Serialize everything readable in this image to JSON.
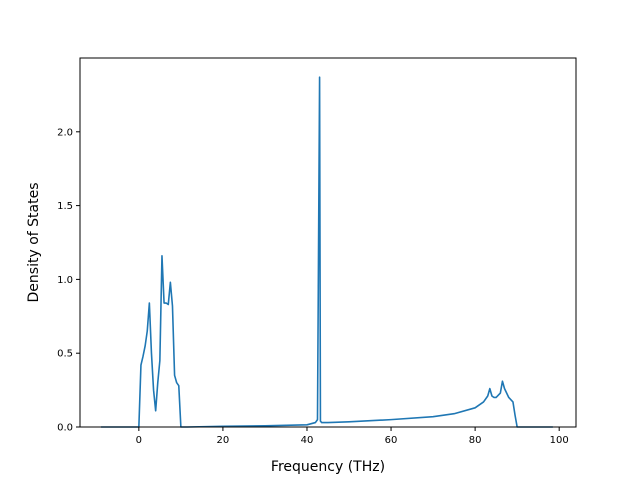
{
  "chart_data": {
    "type": "line",
    "title": "",
    "xlabel": "Frequency (THz)",
    "ylabel": "Density of States",
    "xlim": [
      -14,
      104
    ],
    "ylim": [
      0,
      2.5
    ],
    "xticks": [
      0,
      20,
      40,
      60,
      80,
      100
    ],
    "xtick_labels": [
      "0",
      "20",
      "40",
      "60",
      "80",
      "100"
    ],
    "yticks": [
      0.0,
      0.5,
      1.0,
      1.5,
      2.0
    ],
    "ytick_labels": [
      "0.0",
      "0.5",
      "1.0",
      "1.5",
      "2.0"
    ],
    "grid": false,
    "legend": "none",
    "color": "#1f77b4",
    "series": [
      {
        "x": [
          -9.0,
          -2.0,
          -0.2,
          0.0,
          0.5,
          1.0,
          1.5,
          2.0,
          2.5,
          3.0,
          3.5,
          4.0,
          4.5,
          5.0,
          5.5,
          6.0,
          6.5,
          7.0,
          7.5,
          8.0,
          8.5,
          9.0,
          9.5,
          10.0,
          10.5,
          11.0,
          11.5,
          20.0,
          30.0,
          40.0,
          42.0,
          42.5,
          43.0,
          43.2,
          43.5,
          44.0,
          45.0,
          50.0,
          60.0,
          70.0,
          75.0,
          80.0,
          82.0,
          83.0,
          83.5,
          84.0,
          84.5,
          85.0,
          86.0,
          86.5,
          87.0,
          88.0,
          89.0,
          89.5,
          90.0,
          95.0,
          98.5
        ],
        "y": [
          0.0,
          0.0,
          0.0,
          0.0,
          0.42,
          0.48,
          0.55,
          0.65,
          0.84,
          0.5,
          0.25,
          0.11,
          0.3,
          0.45,
          1.16,
          0.84,
          0.84,
          0.83,
          0.98,
          0.82,
          0.35,
          0.3,
          0.28,
          0.0,
          0.0,
          0.0,
          0.0,
          0.005,
          0.008,
          0.015,
          0.03,
          0.05,
          2.37,
          0.04,
          0.03,
          0.03,
          0.03,
          0.035,
          0.05,
          0.07,
          0.09,
          0.13,
          0.17,
          0.21,
          0.26,
          0.21,
          0.2,
          0.2,
          0.23,
          0.31,
          0.26,
          0.2,
          0.17,
          0.08,
          0.0,
          0.0,
          0.0
        ]
      }
    ]
  }
}
